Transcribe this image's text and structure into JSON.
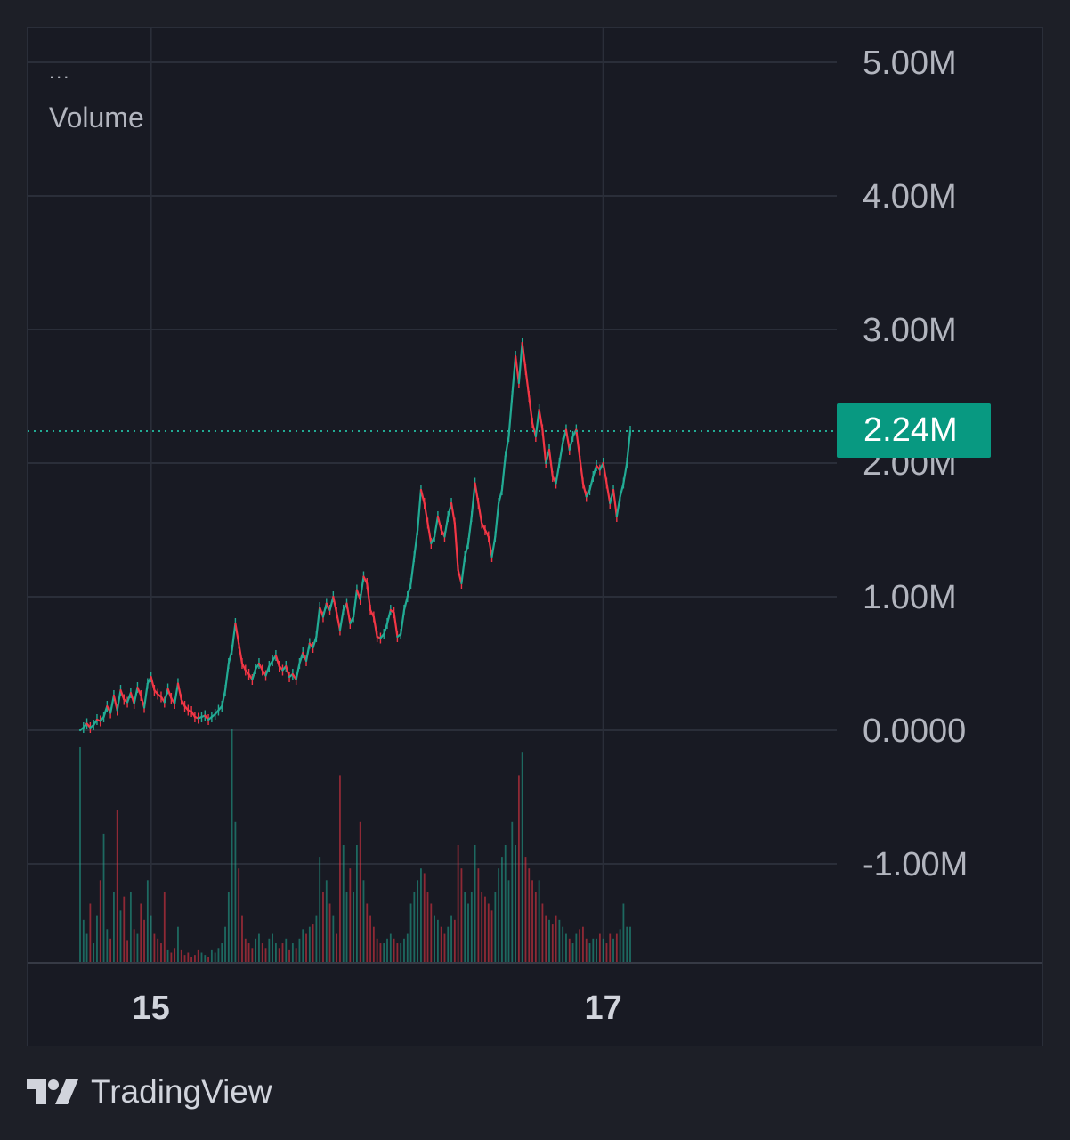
{
  "legend": {
    "menu": "...",
    "title": "Volume"
  },
  "branding": {
    "name": "TradingView",
    "logo_icon": "tradingview-logo-icon"
  },
  "colors": {
    "background": "#181a23",
    "grid": "#2a2e39",
    "up": "#22ab94",
    "down": "#f23645",
    "badge": "#089981",
    "axis_text": "#b2b5be"
  },
  "chart_data": {
    "type": "line",
    "title": "Volume",
    "y_axis": {
      "ticks": [
        "5.00M",
        "4.00M",
        "3.00M",
        "2.00M",
        "1.00M",
        "0.0000",
        "-1.00M"
      ],
      "tick_values": [
        5000000,
        4000000,
        3000000,
        2000000,
        1000000,
        0,
        -1000000
      ],
      "ylim": [
        -1750000,
        5350000
      ],
      "position": "right"
    },
    "x_axis": {
      "ticks": [
        "15",
        "17"
      ],
      "tick_index": [
        21,
        155
      ]
    },
    "grid": true,
    "last_value": 2240000,
    "last_value_label": "2.24M",
    "series": [
      {
        "values": [
          0,
          20000,
          50000,
          20000,
          40000,
          80000,
          70000,
          100000,
          180000,
          130000,
          260000,
          150000,
          300000,
          230000,
          210000,
          280000,
          200000,
          320000,
          260000,
          170000,
          350000,
          400000,
          300000,
          270000,
          250000,
          210000,
          310000,
          240000,
          200000,
          350000,
          230000,
          180000,
          150000,
          140000,
          100000,
          90000,
          100000,
          110000,
          80000,
          100000,
          120000,
          150000,
          180000,
          300000,
          500000,
          600000,
          800000,
          650000,
          500000,
          450000,
          420000,
          380000,
          460000,
          500000,
          450000,
          410000,
          480000,
          520000,
          560000,
          480000,
          450000,
          480000,
          400000,
          420000,
          380000,
          500000,
          580000,
          520000,
          650000,
          620000,
          700000,
          920000,
          850000,
          950000,
          900000,
          1000000,
          880000,
          750000,
          900000,
          950000,
          800000,
          850000,
          1050000,
          980000,
          1150000,
          1100000,
          900000,
          850000,
          700000,
          690000,
          720000,
          800000,
          900000,
          880000,
          700000,
          720000,
          900000,
          1000000,
          1100000,
          1300000,
          1500000,
          1800000,
          1700000,
          1550000,
          1400000,
          1450000,
          1600000,
          1500000,
          1450000,
          1600000,
          1700000,
          1550000,
          1200000,
          1100000,
          1300000,
          1400000,
          1600000,
          1850000,
          1700000,
          1550000,
          1500000,
          1450000,
          1300000,
          1450000,
          1700000,
          1800000,
          2050000,
          2200000,
          2500000,
          2800000,
          2600000,
          2900000,
          2700000,
          2500000,
          2300000,
          2200000,
          2400000,
          2250000,
          2000000,
          2100000,
          1900000,
          1850000,
          2000000,
          2150000,
          2250000,
          2100000,
          2200000,
          2250000,
          2050000,
          1850000,
          1750000,
          1800000,
          1900000,
          1980000,
          1950000,
          2000000,
          1850000,
          1700000,
          1800000,
          1600000,
          1750000,
          1850000,
          2000000,
          2240000
        ]
      }
    ],
    "volume_bars": {
      "max": 1,
      "values": [
        0.92,
        0.18,
        0.12,
        0.25,
        0.08,
        0.2,
        0.35,
        0.55,
        0.14,
        0.1,
        0.3,
        0.65,
        0.22,
        0.28,
        0.09,
        0.3,
        0.14,
        0.12,
        0.25,
        0.18,
        0.35,
        0.2,
        0.12,
        0.1,
        0.08,
        0.3,
        0.05,
        0.04,
        0.06,
        0.15,
        0.05,
        0.03,
        0.04,
        0.02,
        0.03,
        0.05,
        0.04,
        0.03,
        0.02,
        0.05,
        0.04,
        0.06,
        0.08,
        0.15,
        0.3,
        1.0,
        0.6,
        0.4,
        0.2,
        0.1,
        0.08,
        0.06,
        0.1,
        0.12,
        0.08,
        0.06,
        0.1,
        0.12,
        0.08,
        0.06,
        0.08,
        0.1,
        0.05,
        0.08,
        0.06,
        0.1,
        0.14,
        0.12,
        0.15,
        0.16,
        0.2,
        0.45,
        0.3,
        0.35,
        0.25,
        0.2,
        0.12,
        0.8,
        0.5,
        0.3,
        0.4,
        0.3,
        0.5,
        0.6,
        0.35,
        0.25,
        0.2,
        0.15,
        0.1,
        0.08,
        0.08,
        0.1,
        0.12,
        0.1,
        0.08,
        0.08,
        0.1,
        0.12,
        0.25,
        0.3,
        0.35,
        0.4,
        0.38,
        0.3,
        0.25,
        0.2,
        0.18,
        0.15,
        0.12,
        0.15,
        0.2,
        0.18,
        0.5,
        0.4,
        0.3,
        0.25,
        0.3,
        0.5,
        0.4,
        0.3,
        0.28,
        0.25,
        0.22,
        0.3,
        0.4,
        0.45,
        0.5,
        0.35,
        0.6,
        0.5,
        0.8,
        0.9,
        0.45,
        0.4,
        0.35,
        0.3,
        0.35,
        0.25,
        0.2,
        0.18,
        0.16,
        0.2,
        0.18,
        0.15,
        0.12,
        0.1,
        0.08,
        0.12,
        0.14,
        0.15,
        0.1,
        0.08,
        0.1,
        0.1,
        0.12,
        0.1,
        0.08,
        0.12,
        0.1,
        0.12,
        0.14,
        0.25,
        0.15,
        0.15
      ]
    }
  }
}
